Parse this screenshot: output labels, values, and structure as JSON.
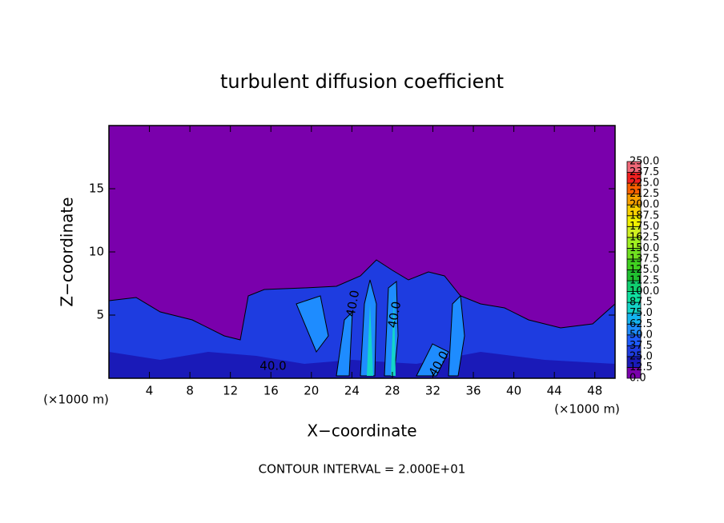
{
  "chart_data": {
    "type": "contour",
    "title": "turbulent diffusion coefficient",
    "xlabel": "X−coordinate",
    "ylabel": "Z−coordinate",
    "x_unit_left": "(×1000 m)",
    "x_unit_right": "(×1000 m)",
    "annotation": "CONTOUR INTERVAL = 2.000E+01",
    "contour_labels": [
      "40.0",
      "40.0",
      "40.0",
      "40.0"
    ],
    "xlim": [
      0,
      50
    ],
    "ylim": [
      0,
      20
    ],
    "xticks": [
      4,
      8,
      12,
      16,
      20,
      24,
      28,
      32,
      36,
      40,
      44,
      48
    ],
    "yticks": [
      5,
      10,
      15
    ],
    "colorbar": {
      "levels": [
        {
          "value": 0,
          "label": "0.0"
        },
        {
          "value": 12.5,
          "label": "12.5"
        },
        {
          "value": 25,
          "label": "25.0"
        },
        {
          "value": 37.5,
          "label": "37.5"
        },
        {
          "value": 50,
          "label": "50.0"
        },
        {
          "value": 62.5,
          "label": "62.5"
        },
        {
          "value": 75,
          "label": "75.0"
        },
        {
          "value": 87.5,
          "label": "87.5"
        },
        {
          "value": 100,
          "label": "100.0"
        },
        {
          "value": 112.5,
          "label": "112.5"
        },
        {
          "value": 125,
          "label": "125.0"
        },
        {
          "value": 137.5,
          "label": "137.5"
        },
        {
          "value": 150,
          "label": "150.0"
        },
        {
          "value": 162.5,
          "label": "162.5"
        },
        {
          "value": 175,
          "label": "175.0"
        },
        {
          "value": 187.5,
          "label": "187.5"
        },
        {
          "value": 200,
          "label": "200.0"
        },
        {
          "value": 212.5,
          "label": "212.5"
        },
        {
          "value": 225,
          "label": "225.0"
        },
        {
          "value": 237.5,
          "label": "237.5"
        },
        {
          "value": 250,
          "label": "250.0"
        }
      ],
      "colors": [
        "#7a00ac",
        "#1a1ab8",
        "#1e3ce0",
        "#1e5cff",
        "#1e8cff",
        "#14b4f0",
        "#14d4c8",
        "#10e0a0",
        "#10d070",
        "#20c030",
        "#40d020",
        "#70e020",
        "#a0f020",
        "#d0f020",
        "#f0f000",
        "#f8d000",
        "#f8a000",
        "#f86000",
        "#f02020",
        "#f06878"
      ]
    }
  }
}
